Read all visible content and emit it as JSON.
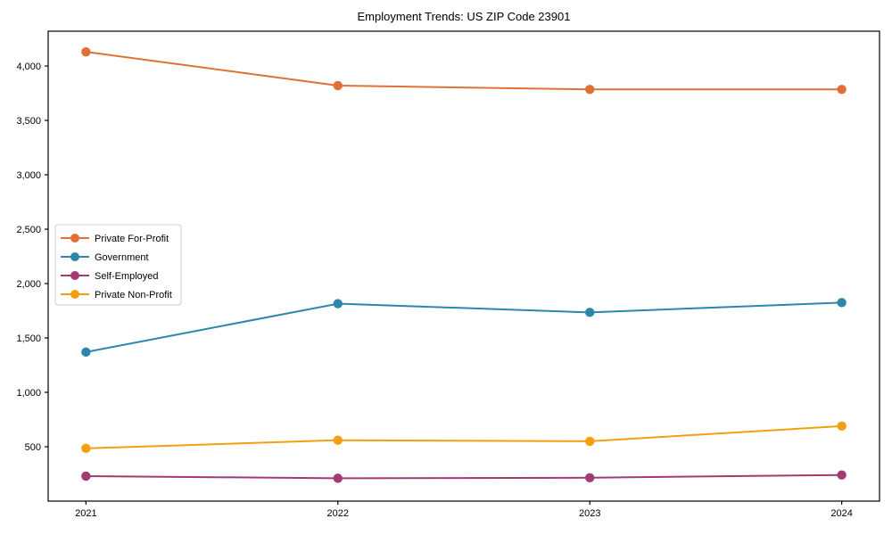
{
  "title": "Employment Trends: US ZIP Code 23901",
  "chart_data": {
    "type": "line",
    "title": "Employment Trends: US ZIP Code 23901",
    "x": [
      2021,
      2022,
      2023,
      2024
    ],
    "x_tick_labels": [
      "2021",
      "2022",
      "2023",
      "2024"
    ],
    "series": [
      {
        "name": "Private For-Profit",
        "color": "#E07038",
        "values": [
          4130,
          3820,
          3785,
          3785
        ]
      },
      {
        "name": "Government",
        "color": "#2E86AB",
        "values": [
          1370,
          1815,
          1735,
          1825
        ]
      },
      {
        "name": "Self-Employed",
        "color": "#A23B72",
        "values": [
          230,
          210,
          215,
          240
        ]
      },
      {
        "name": "Private Non-Profit",
        "color": "#F0A011",
        "values": [
          485,
          560,
          550,
          690
        ]
      }
    ],
    "xlabel": "",
    "ylabel": "",
    "yticks": [
      500,
      1000,
      1500,
      2000,
      2500,
      3000,
      3500,
      4000
    ],
    "ytick_labels": [
      "500",
      "1,000",
      "1,500",
      "2,000",
      "2,500",
      "3,000",
      "3,500",
      "4,000"
    ],
    "ylim": [
      0,
      4320
    ],
    "xlim": [
      2020.85,
      2024.15
    ],
    "grid": false,
    "marker": "circle",
    "legend": {
      "position": "center-left",
      "entries": [
        "Private For-Profit",
        "Government",
        "Self-Employed",
        "Private Non-Profit"
      ]
    },
    "colors": {
      "spine": "#000000",
      "background": "#ffffff",
      "legend_border": "#cccccc"
    }
  }
}
